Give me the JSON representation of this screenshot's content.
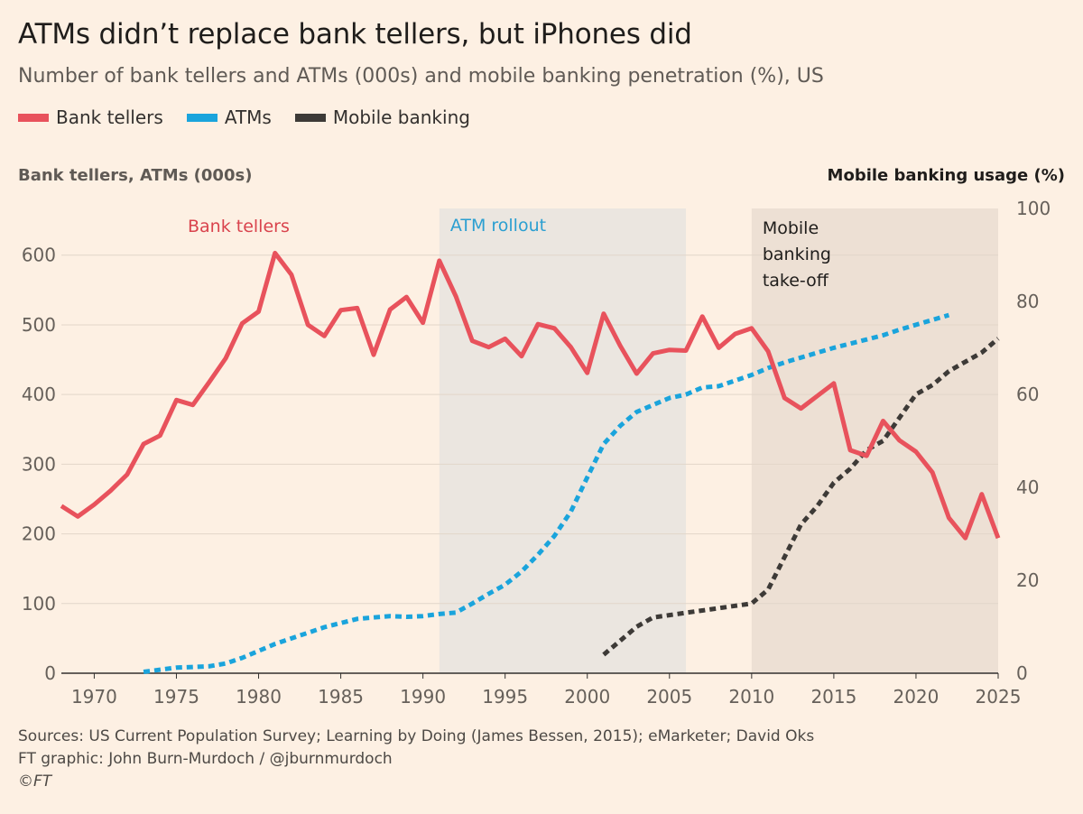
{
  "header": {
    "title": "ATMs didn’t replace bank tellers, but iPhones did",
    "subtitle": "Number of bank tellers and ATMs (000s) and mobile banking penetration (%), US"
  },
  "legend": [
    {
      "label": "Bank tellers",
      "color": "#e8525c"
    },
    {
      "label": "ATMs",
      "color": "#1aa4dc"
    },
    {
      "label": "Mobile banking",
      "color": "#3d3a37"
    }
  ],
  "footer": {
    "sources": "Sources: US Current Population Survey; Learning by Doing (James Bessen, 2015); eMarketer; David Oks",
    "credit": "FT graphic: John Burn-Murdoch / @jburnmurdoch",
    "copyright": "©FT"
  },
  "chart_data": {
    "type": "line",
    "left_axis_label": "Bank tellers, ATMs (000s)",
    "right_axis_label": "Mobile banking usage (%)",
    "xlim": [
      1968,
      2025
    ],
    "x_ticks": [
      1970,
      1975,
      1980,
      1985,
      1990,
      1995,
      2000,
      2005,
      2010,
      2015,
      2020,
      2025
    ],
    "ylim_left": [
      0,
      667
    ],
    "y_ticks_left": [
      0,
      100,
      200,
      300,
      400,
      500,
      600
    ],
    "ylim_right": [
      0,
      100
    ],
    "y_ticks_right": [
      0,
      20,
      40,
      60,
      80,
      100
    ],
    "grid": true,
    "shaded_periods": [
      {
        "label": "ATM rollout",
        "start": 1991,
        "end": 2006,
        "color": "#ebe6e0",
        "text_color": "#2b9fd1"
      },
      {
        "label": "Mobile banking take-off",
        "lines": [
          "Mobile",
          "banking",
          "take-off"
        ],
        "start": 2010,
        "end": 2025,
        "color": "#ede0d4",
        "text_color": "#1f1d1b"
      }
    ],
    "annotations": [
      {
        "label": "Bank tellers",
        "color": "#d9434d"
      }
    ],
    "series": [
      {
        "name": "Bank tellers",
        "axis": "left",
        "color": "#e8525c",
        "style": "solid",
        "x": [
          1968,
          1969,
          1970,
          1971,
          1972,
          1973,
          1974,
          1975,
          1976,
          1977,
          1978,
          1979,
          1980,
          1981,
          1982,
          1983,
          1984,
          1985,
          1986,
          1987,
          1988,
          1989,
          1990,
          1991,
          1992,
          1993,
          1994,
          1995,
          1996,
          1997,
          1998,
          1999,
          2000,
          2001,
          2002,
          2003,
          2004,
          2005,
          2006,
          2007,
          2008,
          2009,
          2010,
          2011,
          2012,
          2013,
          2014,
          2015,
          2016,
          2017,
          2018,
          2019,
          2020,
          2021,
          2022,
          2023,
          2024,
          2025
        ],
        "y": [
          240,
          225,
          242,
          262,
          285,
          329,
          341,
          392,
          385,
          418,
          452,
          502,
          519,
          603,
          572,
          500,
          484,
          521,
          524,
          457,
          522,
          540,
          503,
          592,
          541,
          477,
          468,
          480,
          455,
          501,
          495,
          468,
          431,
          516,
          470,
          430,
          459,
          464,
          463,
          512,
          467,
          487,
          495,
          462,
          395,
          380,
          398,
          416,
          320,
          312,
          362,
          334,
          318,
          288,
          223,
          194,
          257,
          194
        ]
      },
      {
        "name": "ATMs",
        "axis": "left",
        "color": "#1aa4dc",
        "style": "dashed",
        "x": [
          1973,
          1974,
          1975,
          1976,
          1977,
          1978,
          1979,
          1980,
          1981,
          1982,
          1983,
          1984,
          1985,
          1986,
          1987,
          1988,
          1989,
          1990,
          1991,
          1992,
          1993,
          1994,
          1995,
          1996,
          1997,
          1998,
          1999,
          2000,
          2001,
          2002,
          2003,
          2004,
          2005,
          2006,
          2007,
          2008,
          2009,
          2010,
          2011,
          2012,
          2013,
          2014,
          2015,
          2016,
          2017,
          2018,
          2019,
          2020,
          2021,
          2022
        ],
        "y": [
          2,
          5,
          8,
          9,
          10,
          14,
          22,
          32,
          42,
          50,
          58,
          66,
          72,
          78,
          80,
          82,
          81,
          82,
          85,
          87,
          100,
          114,
          127,
          146,
          170,
          197,
          232,
          281,
          329,
          355,
          375,
          385,
          395,
          400,
          410,
          412,
          420,
          428,
          438,
          446,
          453,
          460,
          467,
          473,
          479,
          485,
          493,
          500,
          507,
          514
        ]
      },
      {
        "name": "Mobile banking",
        "axis": "right",
        "color": "#3d3a37",
        "style": "dashed",
        "x": [
          2001,
          2002,
          2003,
          2004,
          2005,
          2006,
          2007,
          2008,
          2009,
          2010,
          2011,
          2012,
          2013,
          2014,
          2015,
          2016,
          2017,
          2018,
          2019,
          2020,
          2021,
          2022,
          2023,
          2024,
          2025
        ],
        "y": [
          4,
          7,
          10,
          12,
          12.5,
          13,
          13.5,
          14,
          14.5,
          15,
          18,
          25,
          32,
          36,
          41,
          44,
          48,
          50,
          55,
          60,
          62,
          65,
          67,
          69,
          72
        ]
      }
    ]
  }
}
